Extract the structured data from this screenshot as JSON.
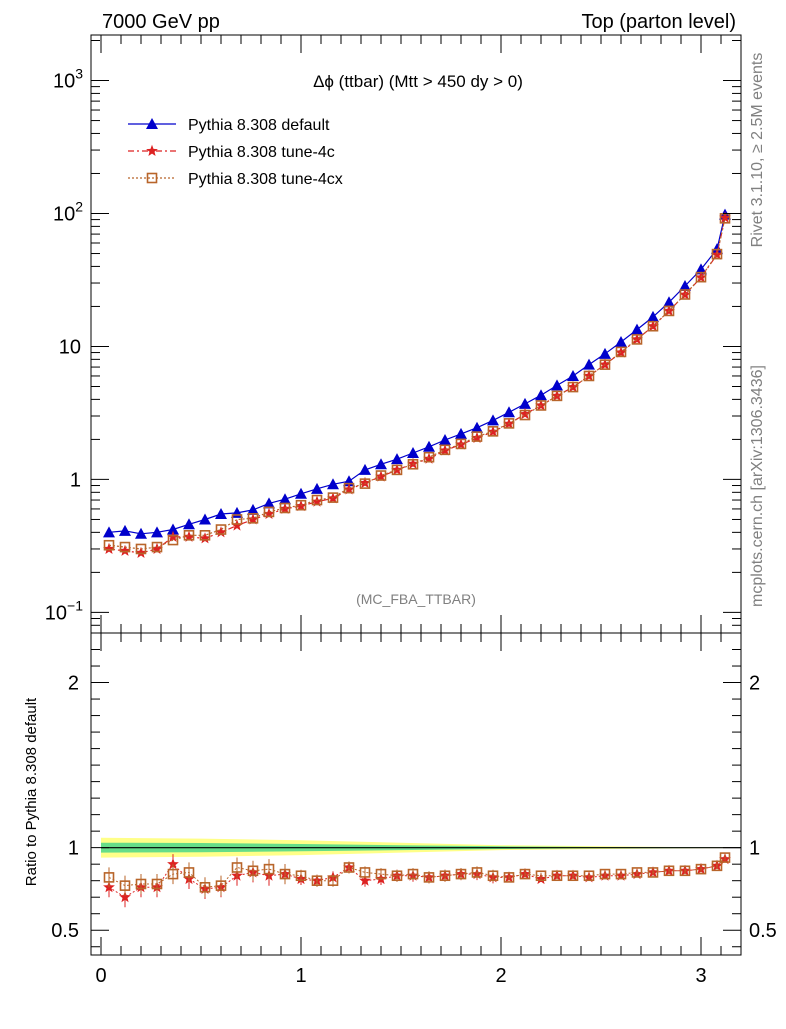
{
  "header": {
    "left": "7000 GeV pp",
    "right": "Top (parton level)"
  },
  "side": {
    "rivet": "Rivet 3.1.10, ≥ 2.5M events",
    "mcplots": "mcplots.cern.ch [arXiv:1306.3436]"
  },
  "chart_data": [
    {
      "type": "line",
      "title": "Δϕ (ttbar) (Mtt > 450 dy > 0)",
      "watermark": "(MC_FBA_TTBAR)",
      "yscale": "log",
      "xlim": [
        -0.05,
        3.2
      ],
      "ylim": [
        0.07,
        2200
      ],
      "yticks": [
        {
          "v": 0.1,
          "label": "10",
          "exp": "−1"
        },
        {
          "v": 1,
          "label": "1",
          "exp": ""
        },
        {
          "v": 10,
          "label": "10",
          "exp": ""
        },
        {
          "v": 100,
          "label": "10",
          "exp": "2"
        },
        {
          "v": 1000,
          "label": "10",
          "exp": "3"
        }
      ],
      "legend_position": "top-left",
      "x": [
        0.04,
        0.12,
        0.2,
        0.28,
        0.36,
        0.44,
        0.52,
        0.6,
        0.68,
        0.76,
        0.84,
        0.92,
        1.0,
        1.08,
        1.16,
        1.24,
        1.32,
        1.4,
        1.48,
        1.56,
        1.64,
        1.72,
        1.8,
        1.88,
        1.96,
        2.04,
        2.12,
        2.2,
        2.28,
        2.36,
        2.44,
        2.52,
        2.6,
        2.68,
        2.76,
        2.84,
        2.92,
        3.0,
        3.08,
        3.12
      ],
      "series": [
        {
          "name": "Pythia 8.308 default",
          "color": "#0000cc",
          "marker": "triangle",
          "dash": "",
          "values": [
            0.4,
            0.41,
            0.39,
            0.4,
            0.42,
            0.46,
            0.5,
            0.55,
            0.56,
            0.59,
            0.66,
            0.71,
            0.78,
            0.85,
            0.92,
            0.97,
            1.18,
            1.3,
            1.42,
            1.58,
            1.76,
            1.98,
            2.2,
            2.45,
            2.78,
            3.2,
            3.7,
            4.3,
            5.1,
            6.0,
            7.3,
            8.8,
            10.8,
            13.4,
            16.7,
            21.5,
            28.5,
            38.0,
            54.0,
            98.0
          ]
        },
        {
          "name": "Pythia 8.308 tune-4c",
          "color": "#dd2222",
          "marker": "star",
          "dash": "6 3 2 3",
          "values": [
            0.3,
            0.29,
            0.28,
            0.3,
            0.37,
            0.37,
            0.36,
            0.4,
            0.45,
            0.5,
            0.55,
            0.6,
            0.63,
            0.68,
            0.72,
            0.84,
            0.94,
            1.05,
            1.18,
            1.31,
            1.43,
            1.65,
            1.83,
            2.05,
            2.28,
            2.62,
            3.1,
            3.6,
            4.25,
            4.95,
            6.0,
            7.3,
            9.0,
            11.3,
            14.2,
            18.5,
            24.5,
            33.0,
            49.0,
            93.0
          ]
        },
        {
          "name": "Pythia 8.308 tune-4cx",
          "color": "#b8652a",
          "marker": "square",
          "dash": "2 2",
          "values": [
            0.32,
            0.31,
            0.3,
            0.31,
            0.35,
            0.38,
            0.38,
            0.42,
            0.5,
            0.51,
            0.57,
            0.61,
            0.64,
            0.7,
            0.73,
            0.86,
            0.93,
            1.07,
            1.18,
            1.3,
            1.47,
            1.67,
            1.85,
            2.1,
            2.3,
            2.64,
            3.05,
            3.6,
            4.25,
            4.95,
            6.0,
            7.3,
            9.1,
            11.3,
            14.2,
            18.5,
            24.6,
            33.2,
            49.5,
            92.0
          ]
        }
      ]
    },
    {
      "type": "line",
      "ylabel": "Ratio to Pythia 8.308 default",
      "xlim": [
        -0.05,
        3.2
      ],
      "ylim": [
        0.35,
        2.3
      ],
      "xticks": [
        0,
        1,
        2,
        3
      ],
      "yticks": [
        0.5,
        1,
        2
      ],
      "x": [
        0.04,
        0.12,
        0.2,
        0.28,
        0.36,
        0.44,
        0.52,
        0.6,
        0.68,
        0.76,
        0.84,
        0.92,
        1.0,
        1.08,
        1.16,
        1.24,
        1.32,
        1.4,
        1.48,
        1.56,
        1.64,
        1.72,
        1.8,
        1.88,
        1.96,
        2.04,
        2.12,
        2.2,
        2.28,
        2.36,
        2.44,
        2.52,
        2.6,
        2.68,
        2.76,
        2.84,
        2.92,
        3.0,
        3.08,
        3.12
      ],
      "band_yellow": {
        "x": [
          0.0,
          0.5,
          1.0,
          1.5,
          2.0,
          2.5,
          3.0,
          3.15
        ],
        "lo": [
          0.94,
          0.945,
          0.955,
          0.97,
          0.985,
          0.992,
          0.997,
          0.998
        ],
        "hi": [
          1.06,
          1.055,
          1.045,
          1.03,
          1.015,
          1.008,
          1.003,
          1.002
        ]
      },
      "band_green": {
        "x": [
          0.0,
          0.5,
          1.0,
          1.5,
          2.0,
          2.5,
          3.0,
          3.15
        ],
        "lo": [
          0.97,
          0.972,
          0.978,
          0.985,
          0.992,
          0.996,
          0.998,
          0.999
        ],
        "hi": [
          1.03,
          1.028,
          1.022,
          1.015,
          1.008,
          1.004,
          1.002,
          1.001
        ]
      },
      "series": [
        {
          "name": "Pythia 8.308 tune-4c",
          "color": "#dd2222",
          "marker": "star",
          "values": [
            0.76,
            0.7,
            0.76,
            0.76,
            0.9,
            0.81,
            0.75,
            0.76,
            0.83,
            0.85,
            0.83,
            0.84,
            0.81,
            0.8,
            0.82,
            0.88,
            0.8,
            0.81,
            0.83,
            0.83,
            0.82,
            0.83,
            0.84,
            0.84,
            0.82,
            0.82,
            0.84,
            0.81,
            0.83,
            0.83,
            0.82,
            0.83,
            0.83,
            0.84,
            0.85,
            0.86,
            0.86,
            0.87,
            0.89,
            0.93
          ]
        },
        {
          "name": "Pythia 8.308 tune-4cx",
          "color": "#b8652a",
          "marker": "square",
          "values": [
            0.82,
            0.77,
            0.78,
            0.78,
            0.84,
            0.85,
            0.76,
            0.77,
            0.88,
            0.86,
            0.87,
            0.84,
            0.83,
            0.8,
            0.8,
            0.88,
            0.85,
            0.84,
            0.83,
            0.84,
            0.82,
            0.83,
            0.84,
            0.85,
            0.83,
            0.82,
            0.84,
            0.83,
            0.83,
            0.83,
            0.83,
            0.84,
            0.84,
            0.85,
            0.85,
            0.86,
            0.86,
            0.87,
            0.89,
            0.94
          ]
        }
      ]
    }
  ]
}
